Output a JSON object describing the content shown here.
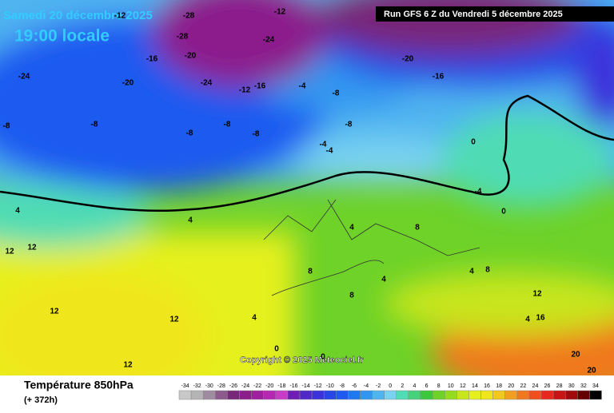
{
  "header": {
    "date": "Samedi 20 décembre 2025",
    "time": "19:00 locale",
    "run": "Run GFS 6 Z du Vendredi 5 décembre 2025"
  },
  "copyright": "Copyright © 2025 Meteociel.fr",
  "footer": {
    "title": "Température 850hPa",
    "lead": "(+ 372h)"
  },
  "scale": {
    "values": [
      -34,
      -32,
      -30,
      -28,
      -26,
      -24,
      -22,
      -20,
      -18,
      -16,
      -14,
      -12,
      -10,
      -8,
      -6,
      -4,
      -2,
      0,
      2,
      4,
      6,
      8,
      10,
      12,
      14,
      16,
      18,
      20,
      22,
      24,
      26,
      28,
      30,
      32,
      34
    ],
    "colors": [
      "#c8c8c8",
      "#b4b4b4",
      "#a08ca0",
      "#8c5a8c",
      "#782878",
      "#8c1e8c",
      "#a01ea0",
      "#b428b4",
      "#c83cc8",
      "#6e1eb4",
      "#5028c8",
      "#3c32dc",
      "#2846e6",
      "#1e5af0",
      "#1e78f0",
      "#3296f0",
      "#50b4f0",
      "#78d2f0",
      "#50dcb4",
      "#46d278",
      "#3cc83c",
      "#6ed228",
      "#96dc1e",
      "#c8e61e",
      "#e6f01e",
      "#f0e61e",
      "#f0c81e",
      "#f0a01e",
      "#f0781e",
      "#f0501e",
      "#e6281e",
      "#c81414",
      "#a00a0a",
      "#640000",
      "#000000"
    ]
  },
  "map_labels": [
    -28,
    -12,
    -28,
    -16,
    -20,
    -24,
    -24,
    -12,
    -20,
    -24,
    -16,
    -12,
    -8,
    -4,
    -8,
    -8,
    -4,
    -8,
    -20,
    -16,
    -8,
    -8,
    -8,
    -4,
    0,
    4,
    4,
    4,
    8,
    12,
    12,
    12,
    12,
    12,
    8,
    4,
    4,
    8,
    0,
    0,
    4,
    8,
    12,
    16,
    20,
    20,
    -4,
    0,
    4
  ]
}
